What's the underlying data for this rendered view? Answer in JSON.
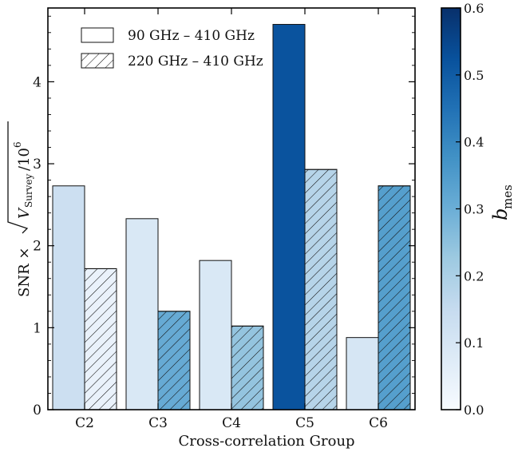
{
  "chart_data": {
    "type": "bar",
    "categories": [
      "C2",
      "C3",
      "C4",
      "C5",
      "C6"
    ],
    "xlabel": "Cross-correlation Group",
    "ylabel_parts": {
      "prefix": "SNR × ",
      "radicand_v": "V",
      "radicand_sub": "Survey",
      "radicand_tail": "/10",
      "radicand_exp": "6"
    },
    "ylim": [
      0,
      4.9
    ],
    "yticks": [
      0,
      1,
      2,
      3,
      4
    ],
    "series": [
      {
        "name": "90 GHz – 410 GHz",
        "hatch": false,
        "values": [
          2.73,
          2.33,
          1.82,
          4.7,
          0.88
        ],
        "b_mes": [
          0.13,
          0.09,
          0.09,
          0.52,
          0.1
        ]
      },
      {
        "name": "220 GHz – 410 GHz",
        "hatch": true,
        "values": [
          1.72,
          1.2,
          1.02,
          2.93,
          2.73
        ],
        "b_mes": [
          0.04,
          0.31,
          0.24,
          0.18,
          0.34
        ]
      }
    ],
    "legend_position": "top-left",
    "colorbar": {
      "label_base": "b",
      "label_sub": "mes",
      "range": [
        0.0,
        0.6
      ],
      "ticks": [
        "0.0",
        "0.1",
        "0.2",
        "0.3",
        "0.4",
        "0.5",
        "0.6"
      ],
      "colormap": "Blues",
      "color_low": "#f7fbff",
      "color_high": "#08306b"
    }
  }
}
